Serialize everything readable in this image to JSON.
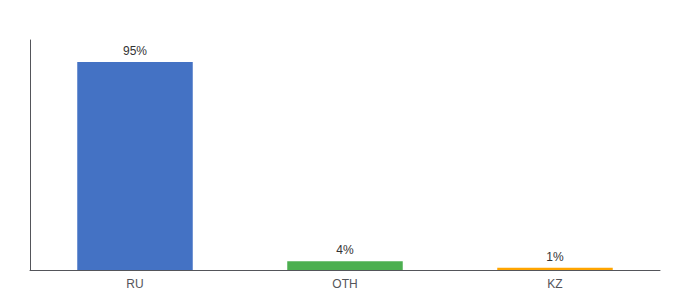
{
  "chart_data": {
    "type": "bar",
    "categories": [
      "RU",
      "OTH",
      "KZ"
    ],
    "values": [
      95,
      4,
      1
    ],
    "value_labels": [
      "95%",
      "4%",
      "1%"
    ],
    "colors": [
      "#4472c4",
      "#4caf50",
      "#ffa500"
    ],
    "ylim": [
      0,
      105
    ],
    "yticks": [],
    "grid": false,
    "tick_labels": "x"
  }
}
